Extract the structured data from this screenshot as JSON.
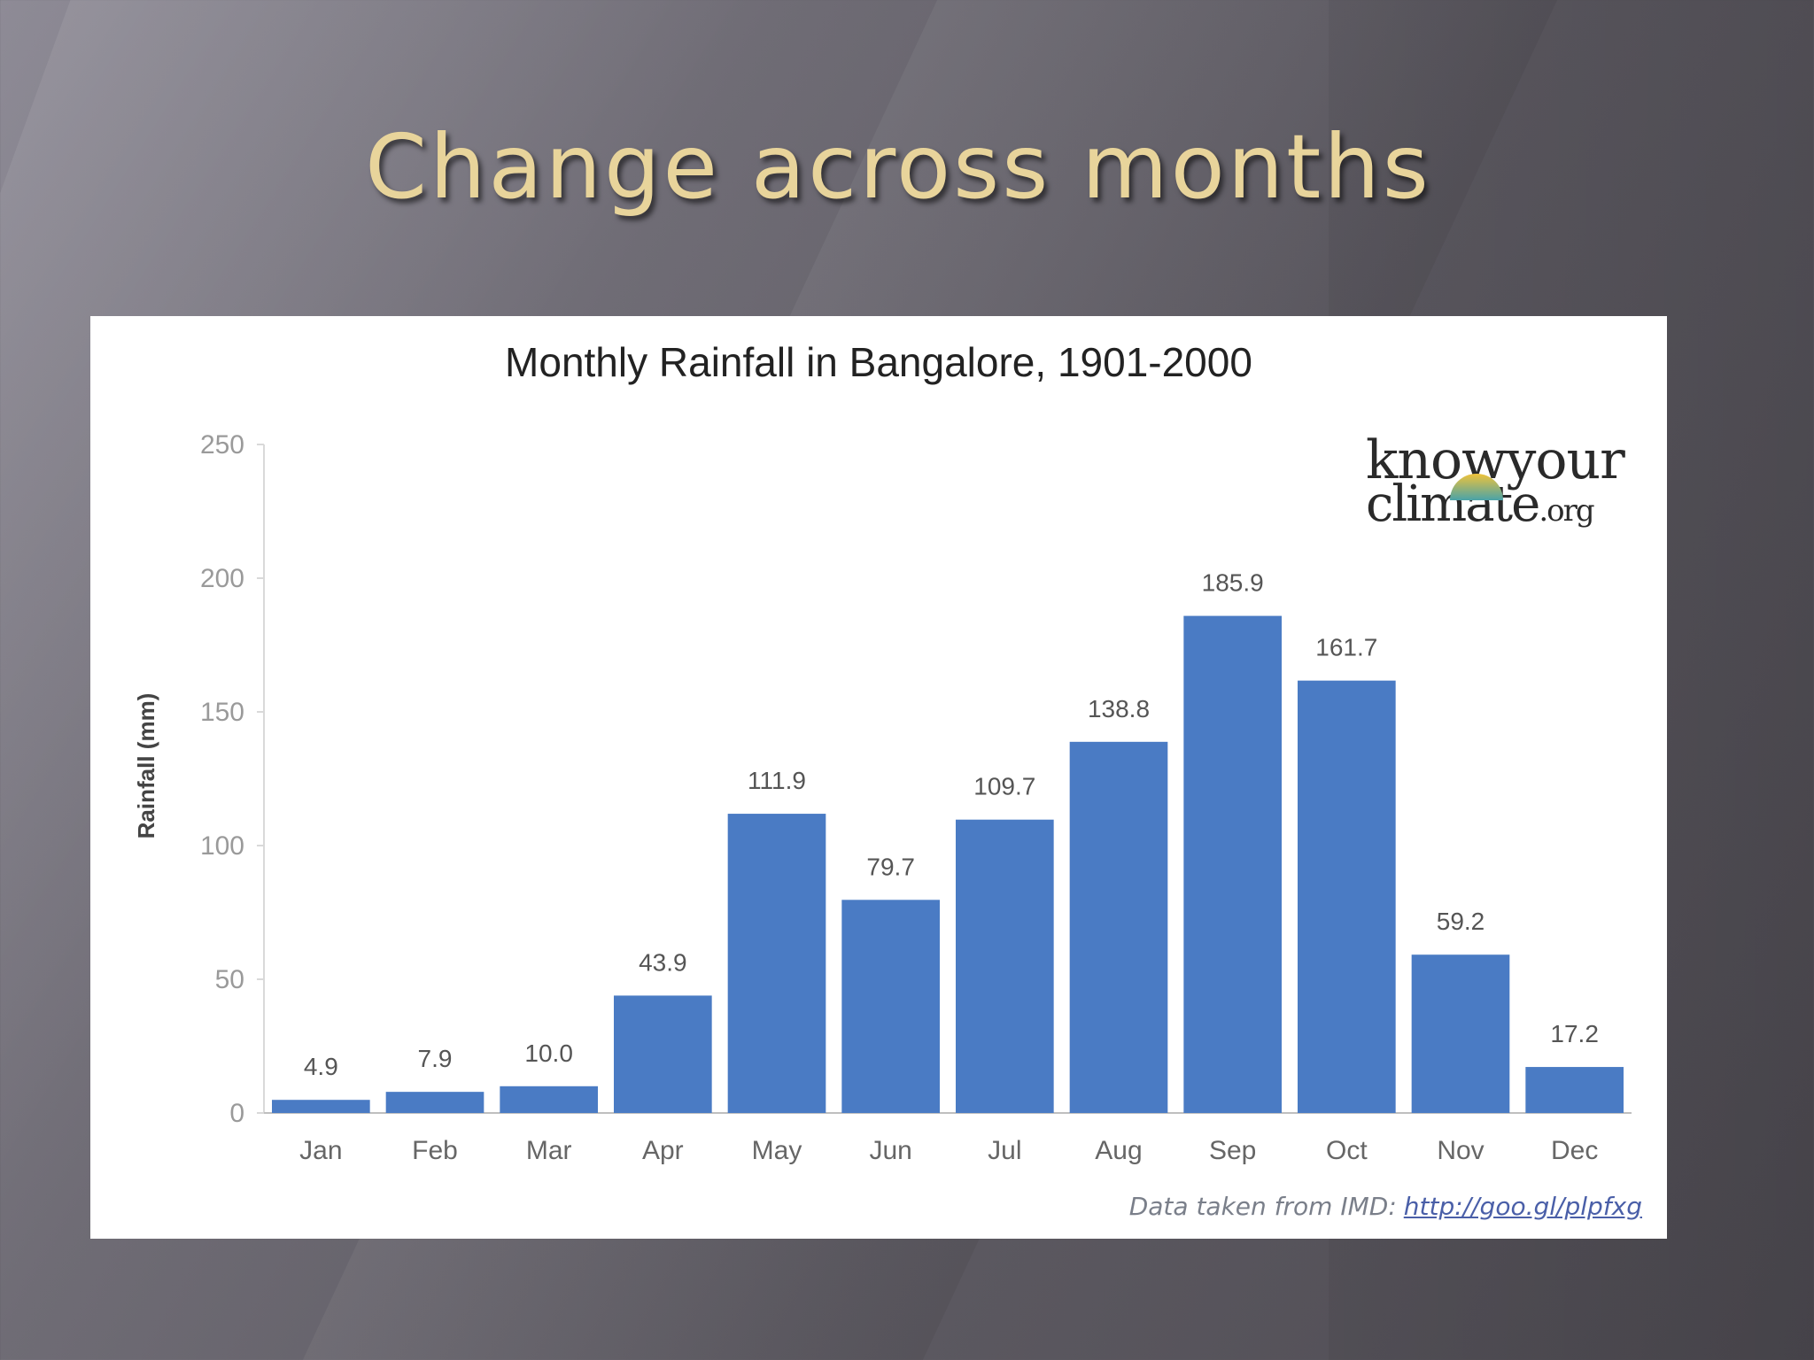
{
  "slide": {
    "title": "Change across months"
  },
  "logo": {
    "line1": "knowyour",
    "line2": "climate",
    "suffix": ".org"
  },
  "source": {
    "text": "Data taken from IMD:",
    "link": "http://goo.gl/plpfxg"
  },
  "chart_data": {
    "type": "bar",
    "title": "Monthly Rainfall in Bangalore, 1901-2000",
    "xlabel": "",
    "ylabel": "Rainfall (mm)",
    "ylim": [
      0,
      250
    ],
    "yticks": [
      0,
      50,
      100,
      150,
      200,
      250
    ],
    "categories": [
      "Jan",
      "Feb",
      "Mar",
      "Apr",
      "May",
      "Jun",
      "Jul",
      "Aug",
      "Sep",
      "Oct",
      "Nov",
      "Dec"
    ],
    "values": [
      4.9,
      7.9,
      10.0,
      43.9,
      111.9,
      79.7,
      109.7,
      138.8,
      185.9,
      161.7,
      59.2,
      17.2
    ],
    "value_labels": [
      "4.9",
      "7.9",
      "10.0",
      "43.9",
      "111.9",
      "79.7",
      "109.7",
      "138.8",
      "185.9",
      "161.7",
      "59.2",
      "17.2"
    ],
    "bar_color": "#4a7bc4",
    "grid": false,
    "legend": "none"
  }
}
